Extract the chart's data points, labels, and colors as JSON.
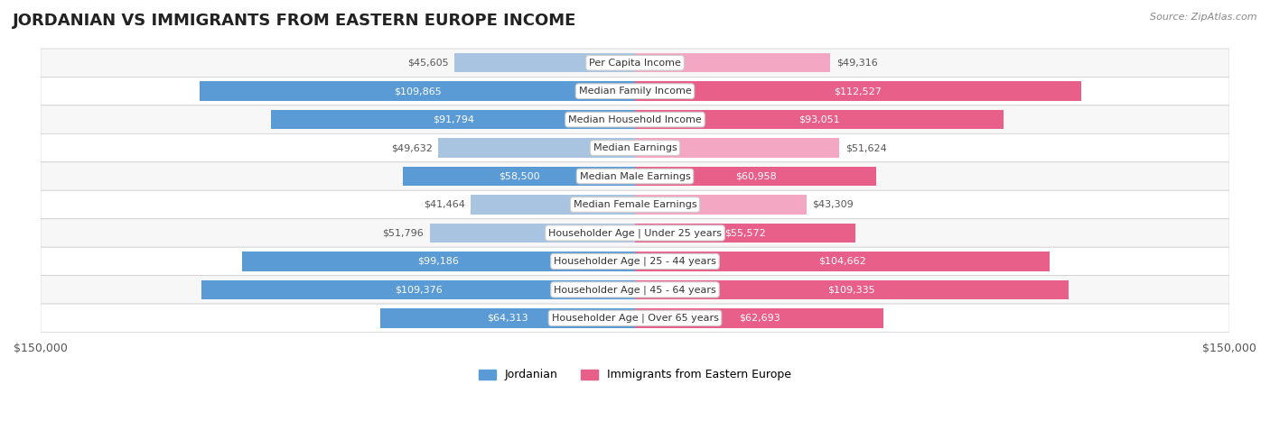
{
  "title": "JORDANIAN VS IMMIGRANTS FROM EASTERN EUROPE INCOME",
  "source": "Source: ZipAtlas.com",
  "categories": [
    "Per Capita Income",
    "Median Family Income",
    "Median Household Income",
    "Median Earnings",
    "Median Male Earnings",
    "Median Female Earnings",
    "Householder Age | Under 25 years",
    "Householder Age | 25 - 44 years",
    "Householder Age | 45 - 64 years",
    "Householder Age | Over 65 years"
  ],
  "jordanian_values": [
    45605,
    109865,
    91794,
    49632,
    58500,
    41464,
    51796,
    99186,
    109376,
    64313
  ],
  "immigrant_values": [
    49316,
    112527,
    93051,
    51624,
    60958,
    43309,
    55572,
    104662,
    109335,
    62693
  ],
  "jordanian_labels": [
    "$45,605",
    "$109,865",
    "$91,794",
    "$49,632",
    "$58,500",
    "$41,464",
    "$51,796",
    "$99,186",
    "$109,376",
    "$64,313"
  ],
  "immigrant_labels": [
    "$49,316",
    "$112,527",
    "$93,051",
    "$51,624",
    "$60,958",
    "$43,309",
    "$55,572",
    "$104,662",
    "$109,335",
    "$62,693"
  ],
  "max_value": 150000,
  "jordanian_color_light": "#a8c4e0",
  "jordanian_color_dark": "#5b9bd5",
  "immigrant_color_light": "#f4a7c3",
  "immigrant_color_dark": "#e8608a",
  "bar_bg_color": "#f0f0f0",
  "row_bg_even": "#f7f7f7",
  "row_bg_odd": "#ffffff",
  "label_color_dark": "#ffffff",
  "label_color_light": "#555555",
  "title_fontsize": 13,
  "label_fontsize": 8,
  "category_fontsize": 8,
  "legend_fontsize": 9,
  "threshold_pct": 0.35
}
